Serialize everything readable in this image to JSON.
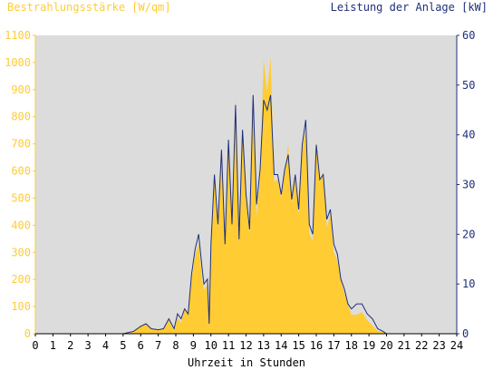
{
  "chart_data": {
    "type": "area",
    "title_left": "Bestrahlungsstärke [W/qm]",
    "title_right": "Leistung der Anlage [kW]",
    "xlabel": "Uhrzeit in Stunden",
    "x_ticks": [
      "0",
      "1",
      "2",
      "3",
      "4",
      "5",
      "6",
      "7",
      "8",
      "9",
      "10",
      "11",
      "12",
      "13",
      "14",
      "15",
      "16",
      "17",
      "18",
      "19",
      "20",
      "21",
      "22",
      "23",
      "24"
    ],
    "y_left_ticks": [
      "0",
      "100",
      "200",
      "300",
      "400",
      "500",
      "600",
      "700",
      "800",
      "900",
      "1000",
      "1100"
    ],
    "y_right_ticks": [
      "0",
      "10",
      "20",
      "30",
      "40",
      "50",
      "60"
    ],
    "xlim": [
      0,
      24
    ],
    "ylim_left": [
      0,
      1100
    ],
    "ylim_right": [
      0,
      60
    ],
    "colors": {
      "irradiance": "#ffcc33",
      "power": "#1f2f7a",
      "plot_bg": "#dcdcdc",
      "left_axis": "#ffcc33",
      "right_axis": "#1f2f7a"
    },
    "series": [
      {
        "name": "Bestrahlungsstärke [W/qm]",
        "axis": "left",
        "x": [
          0,
          5,
          5.6,
          6,
          6.3,
          6.6,
          7,
          7.3,
          7.6,
          7.9,
          8.1,
          8.3,
          8.5,
          8.7,
          8.9,
          9.1,
          9.3,
          9.5,
          9.6,
          9.8,
          9.9,
          10,
          10.2,
          10.4,
          10.6,
          10.8,
          11,
          11.2,
          11.4,
          11.6,
          11.8,
          12,
          12.2,
          12.4,
          12.6,
          12.8,
          13,
          13.2,
          13.4,
          13.6,
          13.8,
          14,
          14.2,
          14.4,
          14.6,
          14.8,
          15,
          15.2,
          15.4,
          15.6,
          15.8,
          16,
          16.2,
          16.4,
          16.6,
          16.8,
          17,
          17.2,
          17.4,
          17.6,
          17.8,
          18,
          18.3,
          18.6,
          18.9,
          19.2,
          19.5,
          19.8,
          20,
          20.2,
          24
        ],
        "values": [
          0,
          0,
          10,
          30,
          40,
          20,
          15,
          15,
          50,
          10,
          60,
          40,
          90,
          70,
          200,
          290,
          330,
          200,
          160,
          180,
          30,
          300,
          560,
          390,
          680,
          320,
          720,
          400,
          870,
          330,
          760,
          500,
          360,
          860,
          430,
          580,
          1010,
          890,
          1020,
          560,
          570,
          500,
          590,
          700,
          480,
          590,
          440,
          680,
          750,
          370,
          340,
          710,
          560,
          590,
          390,
          440,
          300,
          270,
          200,
          150,
          110,
          70,
          70,
          80,
          50,
          30,
          10,
          10,
          0,
          0,
          0
        ]
      },
      {
        "name": "Leistung der Anlage [kW]",
        "axis": "right",
        "x": [
          0,
          5,
          5.6,
          6,
          6.3,
          6.6,
          7,
          7.3,
          7.6,
          7.9,
          8.1,
          8.3,
          8.5,
          8.7,
          8.9,
          9.1,
          9.3,
          9.5,
          9.6,
          9.8,
          9.9,
          10,
          10.2,
          10.4,
          10.6,
          10.8,
          11,
          11.2,
          11.4,
          11.6,
          11.8,
          12,
          12.2,
          12.4,
          12.6,
          12.8,
          13,
          13.2,
          13.4,
          13.6,
          13.8,
          14,
          14.2,
          14.4,
          14.6,
          14.8,
          15,
          15.2,
          15.4,
          15.6,
          15.8,
          16,
          16.2,
          16.4,
          16.6,
          16.8,
          17,
          17.2,
          17.4,
          17.6,
          17.8,
          18,
          18.3,
          18.6,
          18.9,
          19.2,
          19.5,
          19.8,
          20,
          20.2,
          24
        ],
        "values": [
          0,
          0,
          0.5,
          1.5,
          2,
          1,
          0.8,
          1,
          3,
          1,
          4,
          3,
          5,
          4,
          12,
          17,
          20,
          13,
          10,
          11,
          2,
          18,
          32,
          22,
          37,
          18,
          39,
          22,
          46,
          19,
          41,
          28,
          21,
          48,
          26,
          33,
          47,
          45,
          48,
          32,
          32,
          28,
          33,
          36,
          27,
          32,
          25,
          38,
          43,
          22,
          20,
          38,
          31,
          32,
          23,
          25,
          18,
          16,
          11,
          9,
          6,
          5,
          6,
          6,
          4,
          3,
          1,
          0.5,
          0,
          0,
          0
        ]
      }
    ]
  }
}
